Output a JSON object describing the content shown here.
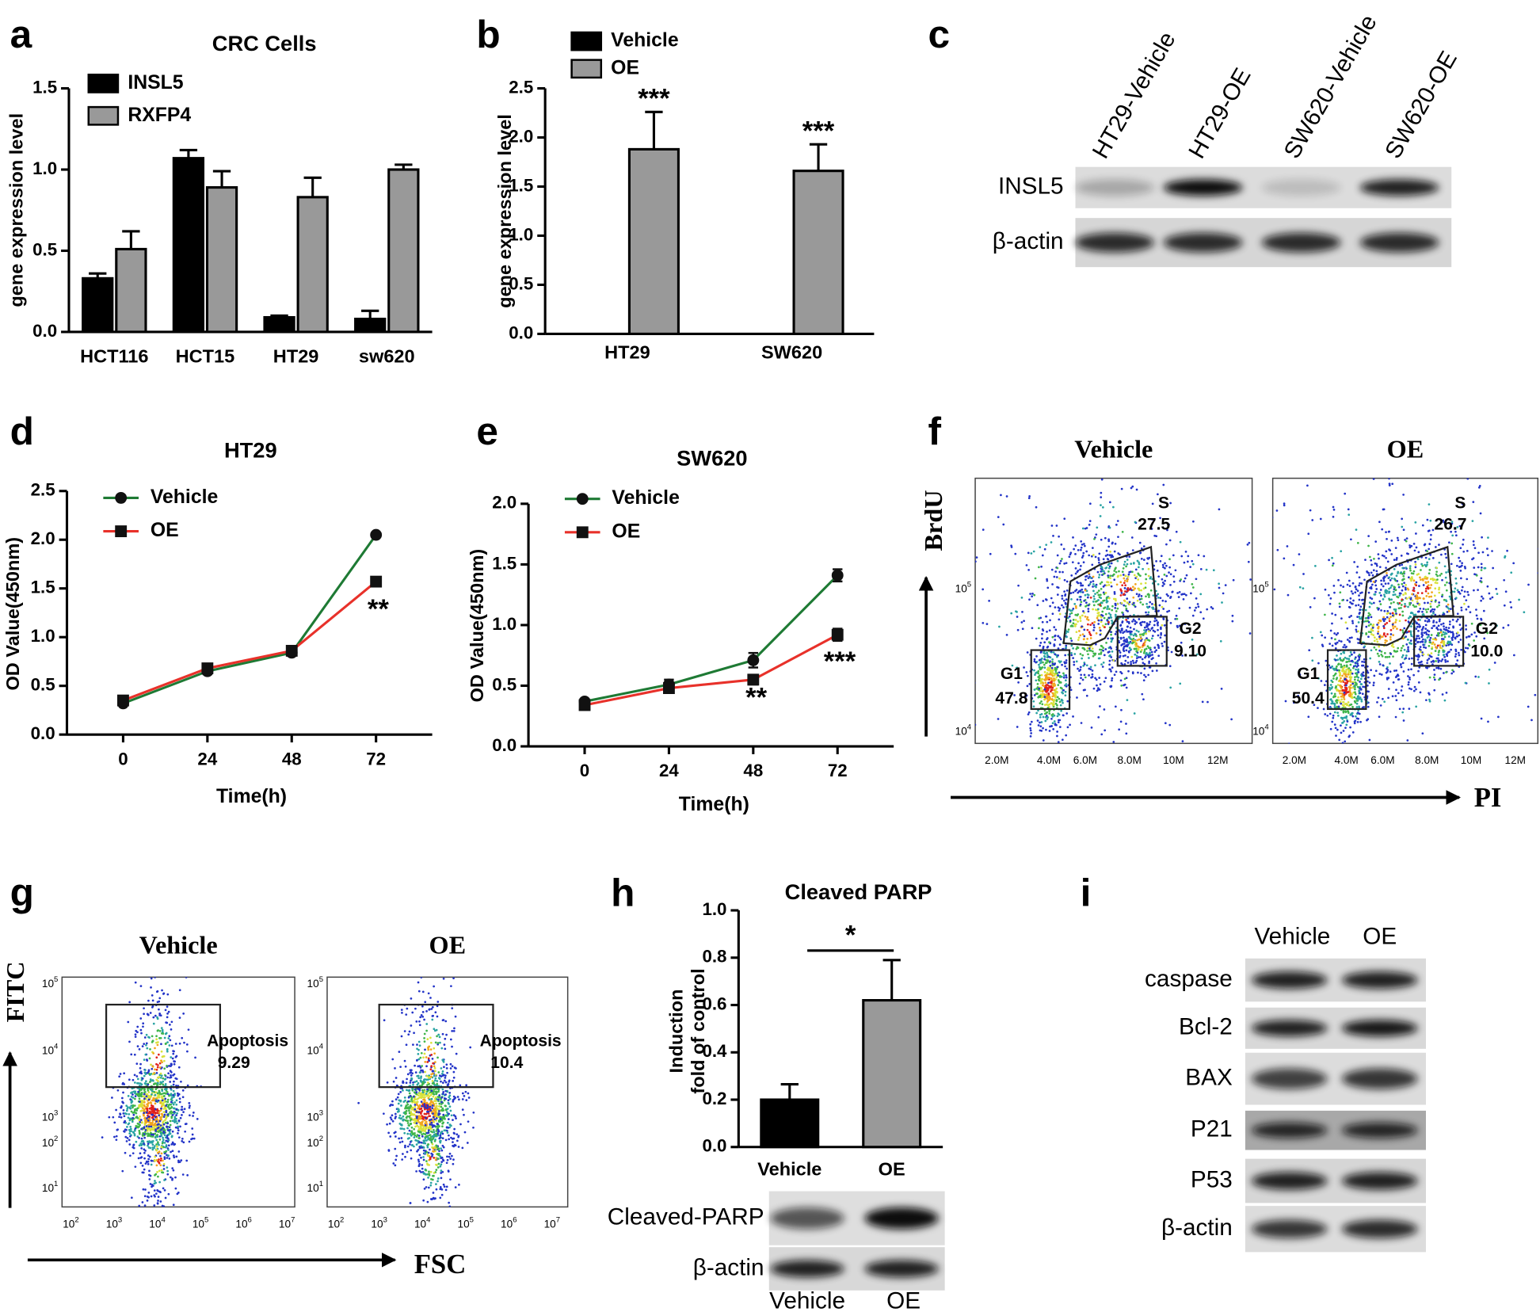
{
  "panel_labels": [
    "a",
    "b",
    "c",
    "d",
    "e",
    "f",
    "g",
    "h",
    "i"
  ],
  "chart_data": [
    {
      "type": "bar",
      "title": "CRC Cells",
      "ylabel": "gene expression level",
      "categories": [
        "HCT116",
        "HCT15",
        "HT29",
        "sw620"
      ],
      "series": [
        {
          "name": "INSL5",
          "color": "#000000",
          "values": [
            0.33,
            1.07,
            0.09,
            0.08
          ],
          "errors": [
            0.03,
            0.05,
            0.01,
            0.05
          ]
        },
        {
          "name": "RXFP4",
          "color": "#999999",
          "values": [
            0.51,
            0.89,
            0.83,
            1.0
          ],
          "errors": [
            0.11,
            0.1,
            0.12,
            0.03
          ]
        }
      ],
      "ylim": [
        0,
        1.5
      ],
      "yticks": [
        {
          "value": 0,
          "label": "0.0"
        },
        0.5,
        {
          "value": 1,
          "label": "1.0"
        },
        1.5
      ]
    },
    {
      "type": "bar",
      "ylabel": "gene expression level",
      "categories": [
        "HT29",
        "SW620"
      ],
      "series": [
        {
          "name": "Vehicle",
          "color": "#000000",
          "values": [
            0,
            0
          ]
        },
        {
          "name": "OE",
          "color": "#999999",
          "values": [
            1.88,
            1.66
          ],
          "errors": [
            0.38,
            0.27
          ]
        }
      ],
      "annotations": [
        "***",
        "***"
      ],
      "ylim": [
        0,
        2.5
      ],
      "yticks": [
        {
          "value": 0,
          "label": "0.0"
        },
        0.5,
        {
          "value": 1,
          "label": "1.0"
        },
        1.5,
        {
          "value": 2,
          "label": "2.0"
        },
        2.5
      ]
    },
    {
      "type": "bar",
      "title": "Cleaved PARP",
      "ylabel": [
        "Induction",
        "fold of control"
      ],
      "categories": [
        "Vehicle",
        "OE"
      ],
      "series": [
        {
          "colors": [
            "#000000",
            "#999999"
          ],
          "values": [
            0.2,
            0.62
          ],
          "errors": [
            0.065,
            0.17
          ]
        }
      ],
      "annotations": [
        "*"
      ],
      "ylim": [
        0,
        1
      ],
      "yticks": [
        {
          "value": 0,
          "label": "0.0"
        },
        0.2,
        0.4,
        0.6,
        0.8,
        {
          "value": 1,
          "label": "1.0"
        }
      ]
    },
    {
      "type": "line",
      "title": "HT29",
      "xlabel": "Time(h)",
      "ylabel": "OD Value(450nm)",
      "x": [
        0,
        24,
        48,
        72
      ],
      "series": [
        {
          "name": "Vehicle",
          "color": "#1e7a34",
          "marker": "circle",
          "marker_color": "#111111",
          "values": [
            0.32,
            0.65,
            0.84,
            2.05
          ],
          "errors": [
            0.02,
            0.03,
            0.03,
            0.02
          ]
        },
        {
          "name": "OE",
          "color": "#e8312a",
          "marker": "square",
          "marker_color": "#111111",
          "values": [
            0.35,
            0.68,
            0.86,
            1.57
          ],
          "errors": [
            0.02,
            0.03,
            0.03,
            0.02
          ]
        }
      ],
      "annotations": [
        "**"
      ],
      "xlim": [
        -16,
        88
      ],
      "xticks": [
        0,
        24,
        48,
        72
      ],
      "ylim": [
        0,
        2.5
      ],
      "yticks": [
        {
          "value": 0,
          "label": "0.0"
        },
        0.5,
        {
          "value": 1,
          "label": "1.0"
        },
        1.5,
        {
          "value": 2,
          "label": "2.0"
        },
        2.5
      ]
    },
    {
      "type": "line",
      "title": "SW620",
      "xlabel": "Time(h)",
      "ylabel": "OD Value(450nm)",
      "x": [
        0,
        24,
        48,
        72
      ],
      "series": [
        {
          "name": "Vehicle",
          "color": "#1e7a34",
          "marker": "circle",
          "marker_color": "#111111",
          "values": [
            0.37,
            0.51,
            0.71,
            1.41
          ],
          "errors": [
            0.02,
            0.04,
            0.06,
            0.05
          ]
        },
        {
          "name": "OE",
          "color": "#e8312a",
          "marker": "square",
          "marker_color": "#111111",
          "values": [
            0.34,
            0.48,
            0.55,
            0.92
          ],
          "errors": [
            0.02,
            0.03,
            0.04,
            0.05
          ]
        }
      ],
      "annotations": [
        "**",
        "***"
      ],
      "xlim": [
        -16,
        88
      ],
      "xticks": [
        0,
        24,
        48,
        72
      ],
      "ylim": [
        0,
        2
      ],
      "yticks": [
        {
          "value": 0,
          "label": "0.0"
        },
        0.5,
        {
          "value": 1,
          "label": "1.0"
        },
        1.5,
        {
          "value": 2,
          "label": "2.0"
        }
      ]
    }
  ],
  "blots": {
    "c": {
      "lanes": [
        "HT29-Vehicle",
        "HT29-OE",
        "SW620-Vehicle",
        "SW620-OE"
      ],
      "rows": [
        "INSL5",
        "β-actin"
      ]
    },
    "h": {
      "lanes": [
        "Vehicle",
        "OE"
      ],
      "rows": [
        "Cleaved-PARP",
        "β-actin"
      ]
    },
    "i": {
      "lanes": [
        "Vehicle",
        "OE"
      ],
      "rows": [
        "caspase",
        "Bcl-2",
        "BAX",
        "P21",
        "P53",
        "β-actin"
      ]
    }
  },
  "flow": {
    "f": {
      "y_axis": "BrdU",
      "x_axis": "PI",
      "plots": [
        {
          "title": "Vehicle",
          "gates": [
            {
              "name": "S",
              "value": "27.5"
            },
            {
              "name": "G1",
              "value": "47.8"
            },
            {
              "name": "G2",
              "value": "9.10"
            }
          ]
        },
        {
          "title": "OE",
          "gates": [
            {
              "name": "S",
              "value": "26.7"
            },
            {
              "name": "G1",
              "value": "50.4"
            },
            {
              "name": "G2",
              "value": "10.0"
            }
          ]
        }
      ],
      "xticks": [
        "2.0M",
        "4.0M",
        "6.0M",
        "8.0M",
        "10M",
        "12M"
      ],
      "yticks": [
        {
          "base": "10",
          "exp": "5"
        },
        {
          "base": "10",
          "exp": "4"
        }
      ]
    },
    "g": {
      "y_axis": "FITC",
      "x_axis": "FSC",
      "plots": [
        {
          "title": "Vehicle",
          "gates": [
            {
              "name": "Apoptosis",
              "value": "9.29"
            }
          ]
        },
        {
          "title": "OE",
          "gates": [
            {
              "name": "Apoptosis",
              "value": "10.4"
            }
          ]
        }
      ],
      "xticks": [
        {
          "base": "10",
          "exp": "2"
        },
        {
          "base": "10",
          "exp": "3"
        },
        {
          "base": "10",
          "exp": "4"
        },
        {
          "base": "10",
          "exp": "5"
        },
        {
          "base": "10",
          "exp": "6"
        },
        {
          "base": "10",
          "exp": "7"
        }
      ],
      "yticks": [
        {
          "base": "10",
          "exp": "5"
        },
        {
          "base": "10",
          "exp": "4"
        },
        {
          "base": "10",
          "exp": "3"
        },
        {
          "base": "10",
          "exp": "2"
        },
        {
          "base": "10",
          "exp": "1"
        }
      ]
    }
  }
}
